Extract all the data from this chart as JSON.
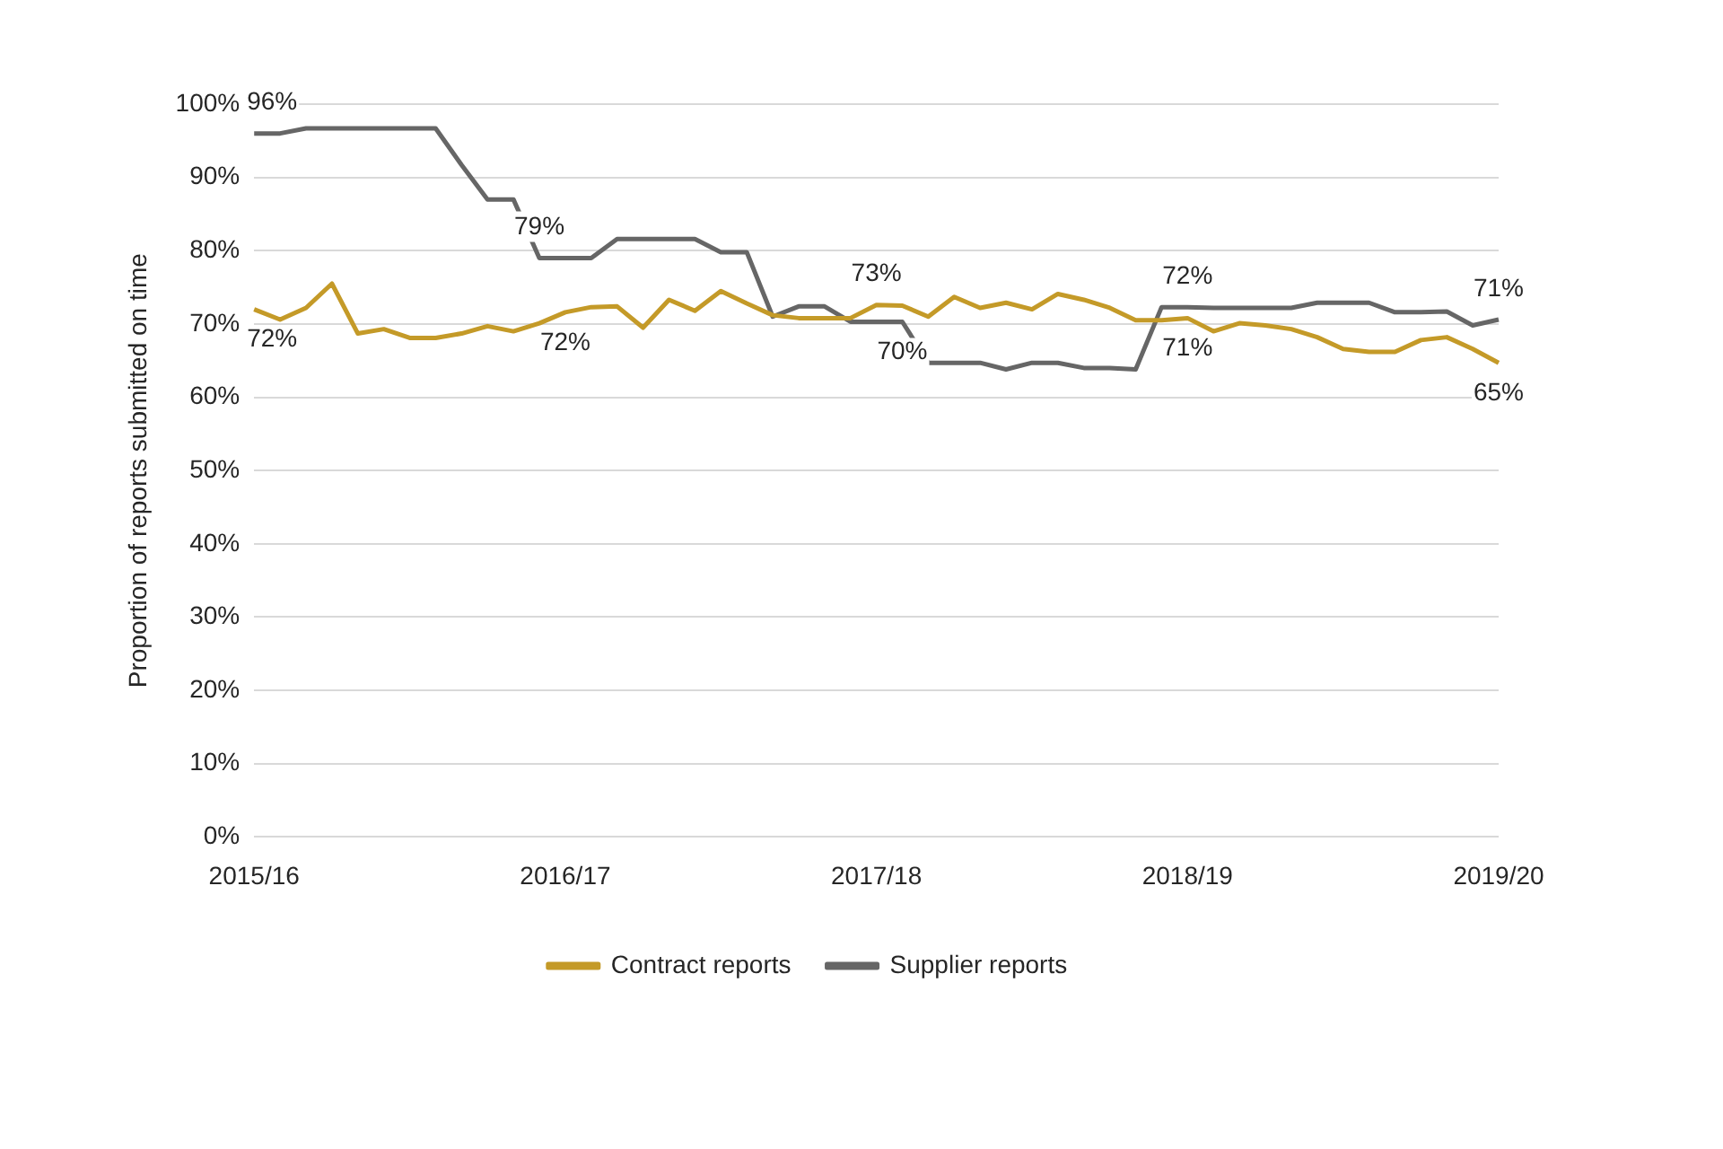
{
  "chart_data": {
    "type": "line",
    "ylabel": "Proportion of reports submitted on time",
    "categories": [
      "2015/16",
      null,
      null,
      null,
      null,
      null,
      null,
      null,
      null,
      null,
      null,
      null,
      "2016/17",
      null,
      null,
      null,
      null,
      null,
      null,
      null,
      null,
      null,
      null,
      null,
      "2017/18",
      null,
      null,
      null,
      null,
      null,
      null,
      null,
      null,
      null,
      null,
      null,
      "2018/19",
      null,
      null,
      null,
      null,
      null,
      null,
      null,
      null,
      null,
      null,
      null,
      "2019/20"
    ],
    "series": [
      {
        "name": "Contract reports",
        "color": "#c49a28",
        "values": [
          72,
          70.6,
          72.2,
          75.5,
          68.7,
          69.3,
          68.1,
          68.1,
          68.7,
          69.7,
          69,
          70.1,
          71.6,
          72.3,
          72.4,
          69.5,
          73.3,
          71.8,
          74.5,
          72.8,
          71.2,
          70.8,
          70.8,
          70.8,
          72.6,
          72.5,
          71,
          73.7,
          72.2,
          72.9,
          72,
          74.1,
          73.3,
          72.2,
          70.5,
          70.5,
          70.8,
          69,
          70.1,
          69.8,
          69.3,
          68.2,
          66.6,
          66.2,
          66.2,
          67.8,
          68.2,
          66.6,
          64.7
        ],
        "value_labels": [
          "72%",
          null,
          null,
          null,
          null,
          null,
          null,
          null,
          null,
          null,
          null,
          null,
          "72%",
          null,
          null,
          null,
          null,
          null,
          null,
          null,
          null,
          null,
          null,
          null,
          "73%",
          null,
          null,
          null,
          null,
          null,
          null,
          null,
          null,
          null,
          null,
          null,
          "71%",
          null,
          null,
          null,
          null,
          null,
          null,
          null,
          null,
          null,
          null,
          null,
          "65%"
        ]
      },
      {
        "name": "Supplier reports",
        "color": "#666666",
        "values": [
          96,
          96,
          96.7,
          96.7,
          96.7,
          96.7,
          96.7,
          96.7,
          91.7,
          87,
          87,
          79,
          79,
          79,
          81.6,
          81.6,
          81.6,
          81.6,
          79.8,
          79.8,
          71,
          72.4,
          72.4,
          70.3,
          70.3,
          70.3,
          64.7,
          64.7,
          64.7,
          63.8,
          64.7,
          64.7,
          64,
          64,
          63.8,
          72.3,
          72.3,
          72.2,
          72.2,
          72.2,
          72.2,
          72.9,
          72.9,
          72.9,
          71.6,
          71.6,
          71.7,
          69.8,
          70.6
        ],
        "value_labels": [
          "96%",
          null,
          null,
          null,
          null,
          null,
          null,
          null,
          null,
          null,
          null,
          "79%",
          null,
          null,
          null,
          null,
          null,
          null,
          null,
          null,
          null,
          null,
          null,
          null,
          null,
          "70%",
          null,
          null,
          null,
          null,
          null,
          null,
          null,
          null,
          null,
          null,
          "72%",
          null,
          null,
          null,
          null,
          null,
          null,
          null,
          null,
          null,
          null,
          null,
          "71%"
        ]
      }
    ],
    "ylim": [
      0,
      100
    ],
    "yticks": [
      {
        "value": 0,
        "label": "0%"
      },
      {
        "value": 10,
        "label": "10%"
      },
      {
        "value": 20,
        "label": "20%"
      },
      {
        "value": 30,
        "label": "30%"
      },
      {
        "value": 40,
        "label": "40%"
      },
      {
        "value": 50,
        "label": "50%"
      },
      {
        "value": 60,
        "label": "60%"
      },
      {
        "value": 70,
        "label": "70%"
      },
      {
        "value": 80,
        "label": "80%"
      },
      {
        "value": 90,
        "label": "90%"
      },
      {
        "value": 100,
        "label": "100%"
      }
    ],
    "grid": "y",
    "legend": "bottom",
    "marker": "none",
    "line_style": "solid"
  }
}
